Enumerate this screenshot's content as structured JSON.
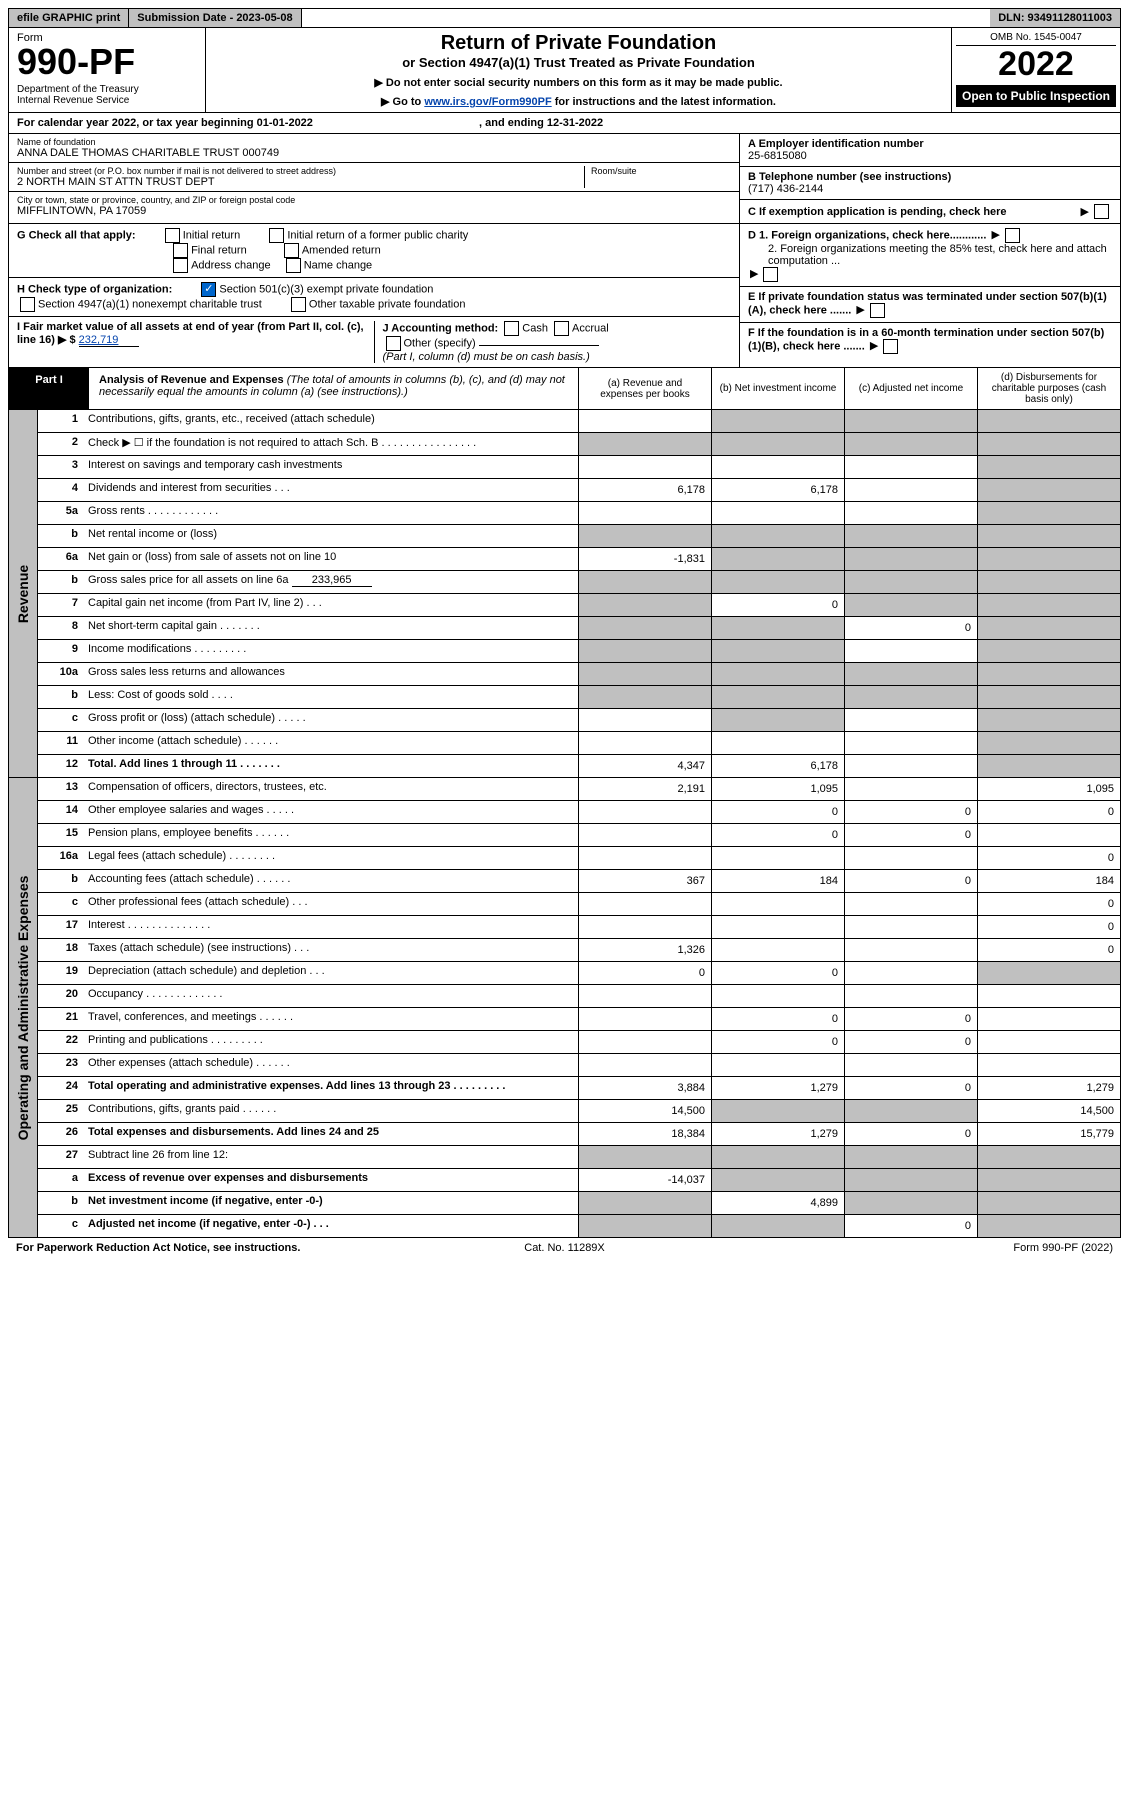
{
  "topbar": {
    "efile": "efile GRAPHIC print",
    "subdate_label": "Submission Date - 2023-05-08",
    "dln": "DLN: 93491128011003"
  },
  "header": {
    "form_label": "Form",
    "form_num": "990-PF",
    "dept": "Department of the Treasury\nInternal Revenue Service",
    "title": "Return of Private Foundation",
    "subtitle": "or Section 4947(a)(1) Trust Treated as Private Foundation",
    "instr1": "▶ Do not enter social security numbers on this form as it may be made public.",
    "instr2_pre": "▶ Go to ",
    "instr2_link": "www.irs.gov/Form990PF",
    "instr2_post": " for instructions and the latest information.",
    "omb": "OMB No. 1545-0047",
    "year": "2022",
    "open": "Open to Public Inspection"
  },
  "cal_year": {
    "pre": "For calendar year 2022, or tax year beginning 01-01-2022",
    "mid": ", and ending 12-31-2022"
  },
  "entity": {
    "name_label": "Name of foundation",
    "name": "ANNA DALE THOMAS CHARITABLE TRUST 000749",
    "addr_label": "Number and street (or P.O. box number if mail is not delivered to street address)",
    "addr": "2 NORTH MAIN ST ATTN TRUST DEPT",
    "room_label": "Room/suite",
    "city_label": "City or town, state or province, country, and ZIP or foreign postal code",
    "city": "MIFFLINTOWN, PA  17059",
    "ein_label": "A Employer identification number",
    "ein": "25-6815080",
    "tel_label": "B Telephone number (see instructions)",
    "tel": "(717) 436-2144",
    "c_label": "C If exemption application is pending, check here"
  },
  "checks": {
    "g_label": "G Check all that apply:",
    "g_items": [
      "Initial return",
      "Initial return of a former public charity",
      "Final return",
      "Amended return",
      "Address change",
      "Name change"
    ],
    "h_label": "H Check type of organization:",
    "h_501": "Section 501(c)(3) exempt private foundation",
    "h_4947": "Section 4947(a)(1) nonexempt charitable trust",
    "h_other": "Other taxable private foundation",
    "i_label": "I Fair market value of all assets at end of year (from Part II, col. (c), line 16) ▶ $",
    "i_val": "232,719",
    "j_label": "J Accounting method:",
    "j_cash": "Cash",
    "j_accrual": "Accrual",
    "j_other": "Other (specify)",
    "j_note": "(Part I, column (d) must be on cash basis.)",
    "d1": "D 1. Foreign organizations, check here............",
    "d2": "2. Foreign organizations meeting the 85% test, check here and attach computation ...",
    "e_label": "E  If private foundation status was terminated under section 507(b)(1)(A), check here .......",
    "f_label": "F  If the foundation is in a 60-month termination under section 507(b)(1)(B), check here ......."
  },
  "part1": {
    "label": "Part I",
    "title": "Analysis of Revenue and Expenses",
    "title_note": "(The total of amounts in columns (b), (c), and (d) may not necessarily equal the amounts in column (a) (see instructions).)",
    "col_a": "(a) Revenue and expenses per books",
    "col_b": "(b) Net investment income",
    "col_c": "(c) Adjusted net income",
    "col_d": "(d) Disbursements for charitable purposes (cash basis only)"
  },
  "section_labels": {
    "revenue": "Revenue",
    "expenses": "Operating and Administrative Expenses"
  },
  "rows": [
    {
      "num": "1",
      "desc": "Contributions, gifts, grants, etc., received (attach schedule)",
      "a": "",
      "b": "gray",
      "c": "gray",
      "d": "gray"
    },
    {
      "num": "2",
      "desc": "Check ▶ ☐ if the foundation is not required to attach Sch. B  . . . . . . . . . . . . . . . .",
      "a": "gray",
      "b": "gray",
      "c": "gray",
      "d": "gray"
    },
    {
      "num": "3",
      "desc": "Interest on savings and temporary cash investments",
      "a": "",
      "b": "",
      "c": "",
      "d": "gray"
    },
    {
      "num": "4",
      "desc": "Dividends and interest from securities  .   .   .",
      "a": "6,178",
      "b": "6,178",
      "c": "",
      "d": "gray"
    },
    {
      "num": "5a",
      "desc": "Gross rents  .  .  .  .  .  .  .  .  .  .  .  .",
      "a": "",
      "b": "",
      "c": "",
      "d": "gray"
    },
    {
      "num": "b",
      "desc": "Net rental income or (loss)",
      "a": "gray",
      "b": "gray",
      "c": "gray",
      "d": "gray"
    },
    {
      "num": "6a",
      "desc": "Net gain or (loss) from sale of assets not on line 10",
      "a": "-1,831",
      "b": "gray",
      "c": "gray",
      "d": "gray"
    },
    {
      "num": "b",
      "desc": "Gross sales price for all assets on line 6a",
      "extra": "233,965",
      "a": "gray",
      "b": "gray",
      "c": "gray",
      "d": "gray"
    },
    {
      "num": "7",
      "desc": "Capital gain net income (from Part IV, line 2)  .  .  .",
      "a": "gray",
      "b": "0",
      "c": "gray",
      "d": "gray"
    },
    {
      "num": "8",
      "desc": "Net short-term capital gain  .  .  .  .  .  .  .",
      "a": "gray",
      "b": "gray",
      "c": "0",
      "d": "gray"
    },
    {
      "num": "9",
      "desc": "Income modifications  .  .  .  .  .  .  .  .  .",
      "a": "gray",
      "b": "gray",
      "c": "",
      "d": "gray"
    },
    {
      "num": "10a",
      "desc": "Gross sales less returns and allowances",
      "a": "gray",
      "b": "gray",
      "c": "gray",
      "d": "gray"
    },
    {
      "num": "b",
      "desc": "Less: Cost of goods sold  .  .  .  .",
      "a": "gray",
      "b": "gray",
      "c": "gray",
      "d": "gray"
    },
    {
      "num": "c",
      "desc": "Gross profit or (loss) (attach schedule)  .  .  .  .  .",
      "a": "",
      "b": "gray",
      "c": "",
      "d": "gray"
    },
    {
      "num": "11",
      "desc": "Other income (attach schedule)  .  .  .  .  .  .",
      "a": "",
      "b": "",
      "c": "",
      "d": "gray"
    },
    {
      "num": "12",
      "desc": "Total. Add lines 1 through 11  .  .  .  .  .  .  .",
      "bold": true,
      "a": "4,347",
      "b": "6,178",
      "c": "",
      "d": "gray"
    }
  ],
  "exp_rows": [
    {
      "num": "13",
      "desc": "Compensation of officers, directors, trustees, etc.",
      "a": "2,191",
      "b": "1,095",
      "c": "",
      "d": "1,095"
    },
    {
      "num": "14",
      "desc": "Other employee salaries and wages  .  .  .  .  .",
      "a": "",
      "b": "0",
      "c": "0",
      "d": "0"
    },
    {
      "num": "15",
      "desc": "Pension plans, employee benefits  .  .  .  .  .  .",
      "a": "",
      "b": "0",
      "c": "0",
      "d": ""
    },
    {
      "num": "16a",
      "desc": "Legal fees (attach schedule)  .  .  .  .  .  .  .  .",
      "a": "",
      "b": "",
      "c": "",
      "d": "0"
    },
    {
      "num": "b",
      "desc": "Accounting fees (attach schedule)  .  .  .  .  .  .",
      "a": "367",
      "b": "184",
      "c": "0",
      "d": "184"
    },
    {
      "num": "c",
      "desc": "Other professional fees (attach schedule)  .  .  .",
      "a": "",
      "b": "",
      "c": "",
      "d": "0"
    },
    {
      "num": "17",
      "desc": "Interest  .  .  .  .  .  .  .  .  .  .  .  .  .  .",
      "a": "",
      "b": "",
      "c": "",
      "d": "0"
    },
    {
      "num": "18",
      "desc": "Taxes (attach schedule) (see instructions)  .  .  .",
      "a": "1,326",
      "b": "",
      "c": "",
      "d": "0"
    },
    {
      "num": "19",
      "desc": "Depreciation (attach schedule) and depletion  .  .  .",
      "a": "0",
      "b": "0",
      "c": "",
      "d": "gray"
    },
    {
      "num": "20",
      "desc": "Occupancy  .  .  .  .  .  .  .  .  .  .  .  .  .",
      "a": "",
      "b": "",
      "c": "",
      "d": ""
    },
    {
      "num": "21",
      "desc": "Travel, conferences, and meetings  .  .  .  .  .  .",
      "a": "",
      "b": "0",
      "c": "0",
      "d": ""
    },
    {
      "num": "22",
      "desc": "Printing and publications  .  .  .  .  .  .  .  .  .",
      "a": "",
      "b": "0",
      "c": "0",
      "d": ""
    },
    {
      "num": "23",
      "desc": "Other expenses (attach schedule)  .  .  .  .  .  .",
      "a": "",
      "b": "",
      "c": "",
      "d": ""
    },
    {
      "num": "24",
      "desc": "Total operating and administrative expenses. Add lines 13 through 23  .  .  .  .  .  .  .  .  .",
      "bold": true,
      "a": "3,884",
      "b": "1,279",
      "c": "0",
      "d": "1,279"
    },
    {
      "num": "25",
      "desc": "Contributions, gifts, grants paid  .  .  .  .  .  .",
      "a": "14,500",
      "b": "gray",
      "c": "gray",
      "d": "14,500"
    },
    {
      "num": "26",
      "desc": "Total expenses and disbursements. Add lines 24 and 25",
      "bold": true,
      "a": "18,384",
      "b": "1,279",
      "c": "0",
      "d": "15,779"
    },
    {
      "num": "27",
      "desc": "Subtract line 26 from line 12:",
      "a": "gray",
      "b": "gray",
      "c": "gray",
      "d": "gray"
    },
    {
      "num": "a",
      "desc": "Excess of revenue over expenses and disbursements",
      "bold": true,
      "a": "-14,037",
      "b": "gray",
      "c": "gray",
      "d": "gray"
    },
    {
      "num": "b",
      "desc": "Net investment income (if negative, enter -0-)",
      "bold": true,
      "a": "gray",
      "b": "4,899",
      "c": "gray",
      "d": "gray"
    },
    {
      "num": "c",
      "desc": "Adjusted net income (if negative, enter -0-)  .  .  .",
      "bold": true,
      "a": "gray",
      "b": "gray",
      "c": "0",
      "d": "gray"
    }
  ],
  "footer": {
    "left": "For Paperwork Reduction Act Notice, see instructions.",
    "center": "Cat. No. 11289X",
    "right": "Form 990-PF (2022)"
  },
  "colors": {
    "gray": "#c0c0c0",
    "link": "#0645ad",
    "black": "#000000",
    "check_blue": "#0066cc"
  }
}
